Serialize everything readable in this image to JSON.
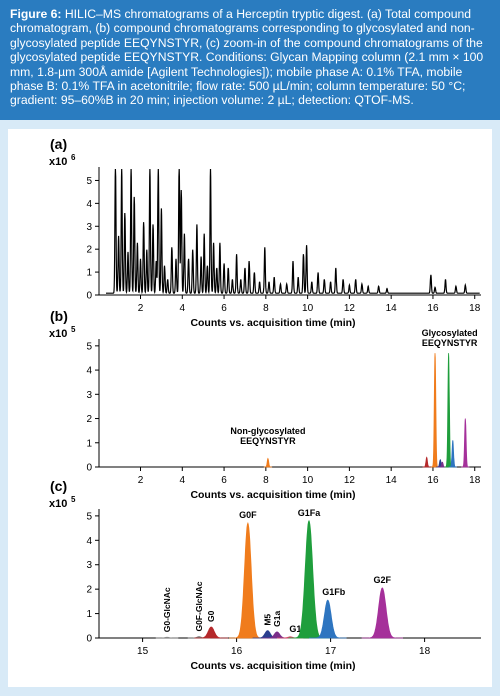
{
  "caption": {
    "label": "Figure 6:",
    "text": "HILIC–MS chromatograms of a Herceptin tryptic digest. (a) Total compound chromatogram, (b) compound chromatograms corresponding to glycosylated and non-glycosylated peptide EEQYNSTYR, (c) zoom-in of the compound chromatograms of the glycosylated peptide EEQYNSTYR. Conditions: Glycan Mapping column (2.1 mm × 100 mm, 1.8-µm 300Å amide [Agilent Technologies]); mobile phase A: 0.1% TFA, mobile phase B: 0.1% TFA in acetonitrile; flow rate: 500 µL/min; column temperature: 50 °C; gradient: 95–60%B in 20 min; injection volume: 2 µL; detection: QTOF-MS."
  },
  "colors": {
    "caption_bg": "#2a7cc0",
    "page_bg": "#d8eaf7",
    "trace": "#000000",
    "G0-GlcNAc": "#8a8a8a",
    "G0F-GlcNAc": "#7a7a7a",
    "G0": "#b5292b",
    "G0F": "#f07c1c",
    "M5": "#2a3f8f",
    "G1a": "#7a2f8a",
    "G1b": "#d84a6a",
    "G1Fa": "#1f9e3c",
    "G1Fb": "#2e75c0",
    "G2F": "#a5309a"
  },
  "chart_data": [
    {
      "panel_label": "(a)",
      "type": "line",
      "title": "",
      "xlabel": "Counts vs. acquisition time (min)",
      "ylabel": "",
      "y_multiplier": "x10",
      "y_multiplier_exp": "6",
      "xlim": [
        0.3,
        18.3
      ],
      "ylim": [
        0,
        5.5
      ],
      "xticks": [
        2,
        4,
        6,
        8,
        10,
        12,
        14,
        16,
        18
      ],
      "yticks": [
        0,
        1,
        2,
        3,
        4,
        5
      ],
      "series": [
        {
          "peaks": [
            [
              0.8,
              5.5
            ],
            [
              0.95,
              2.5
            ],
            [
              1.1,
              5.5
            ],
            [
              1.25,
              3.5
            ],
            [
              1.4,
              1.8
            ],
            [
              1.55,
              5.5
            ],
            [
              1.7,
              4.2
            ],
            [
              1.85,
              2.2
            ],
            [
              2.0,
              1.5
            ],
            [
              2.15,
              3.1
            ],
            [
              2.3,
              1.9
            ],
            [
              2.45,
              5.5
            ],
            [
              2.6,
              3.0
            ],
            [
              2.75,
              1.4
            ],
            [
              2.85,
              5.5
            ],
            [
              3.0,
              3.7
            ],
            [
              3.15,
              1.2
            ],
            [
              3.3,
              0.6
            ],
            [
              3.5,
              2.0
            ],
            [
              3.7,
              1.5
            ],
            [
              3.85,
              5.5
            ],
            [
              3.95,
              4.5
            ],
            [
              4.1,
              2.6
            ],
            [
              4.3,
              1.5
            ],
            [
              4.5,
              1.9
            ],
            [
              4.7,
              3.0
            ],
            [
              4.9,
              1.6
            ],
            [
              5.05,
              2.6
            ],
            [
              5.2,
              1.2
            ],
            [
              5.35,
              5.5
            ],
            [
              5.5,
              2.2
            ],
            [
              5.65,
              1.1
            ],
            [
              5.8,
              2.2
            ],
            [
              6.0,
              1.3
            ],
            [
              6.2,
              1.1
            ],
            [
              6.4,
              0.6
            ],
            [
              6.6,
              1.7
            ],
            [
              6.8,
              0.6
            ],
            [
              7.0,
              1.1
            ],
            [
              7.2,
              1.4
            ],
            [
              7.45,
              0.9
            ],
            [
              7.7,
              0.5
            ],
            [
              7.95,
              2.0
            ],
            [
              8.15,
              0.5
            ],
            [
              8.4,
              0.7
            ],
            [
              8.7,
              0.4
            ],
            [
              9.0,
              0.4
            ],
            [
              9.3,
              1.4
            ],
            [
              9.55,
              0.7
            ],
            [
              9.8,
              1.7
            ],
            [
              9.95,
              2.1
            ],
            [
              10.2,
              0.5
            ],
            [
              10.5,
              0.9
            ],
            [
              10.8,
              0.6
            ],
            [
              11.1,
              0.5
            ],
            [
              11.35,
              1.1
            ],
            [
              11.7,
              0.6
            ],
            [
              12.0,
              0.35
            ],
            [
              12.3,
              0.6
            ],
            [
              12.6,
              0.4
            ],
            [
              12.9,
              0.3
            ],
            [
              13.4,
              0.3
            ],
            [
              13.8,
              0.2
            ],
            [
              15.9,
              0.8
            ],
            [
              16.1,
              0.25
            ],
            [
              16.6,
              0.6
            ],
            [
              17.1,
              0.3
            ],
            [
              17.55,
              0.35
            ]
          ]
        }
      ]
    },
    {
      "panel_label": "(b)",
      "type": "line",
      "title": "",
      "xlabel": "Counts vs. acquisition time (min)",
      "ylabel": "",
      "y_multiplier": "x10",
      "y_multiplier_exp": "5",
      "xlim": [
        0.3,
        18.3
      ],
      "ylim": [
        0,
        5.2
      ],
      "xticks": [
        2,
        4,
        6,
        8,
        10,
        12,
        14,
        16,
        18
      ],
      "yticks": [
        0,
        1,
        2,
        3,
        4,
        5
      ],
      "annotations": [
        {
          "lines": [
            "Non-glycosylated",
            "EEQYNSTYR"
          ],
          "x": 8.1,
          "y": 0.95
        },
        {
          "lines": [
            "Glycosylated",
            "EEQYNSTYR"
          ],
          "x": 16.8,
          "y": 5.0
        }
      ],
      "series": [
        {
          "name": "Non-glycosylated",
          "color_key": "G0F",
          "peaks": [
            [
              8.1,
              0.35
            ]
          ]
        },
        {
          "name": "G0",
          "color_key": "G0",
          "peaks": [
            [
              15.7,
              0.4
            ]
          ]
        },
        {
          "name": "G0F",
          "color_key": "G0F",
          "peaks": [
            [
              16.1,
              4.7
            ]
          ]
        },
        {
          "name": "M5",
          "color_key": "M5",
          "peaks": [
            [
              16.35,
              0.3
            ]
          ]
        },
        {
          "name": "G1a",
          "color_key": "G1a",
          "peaks": [
            [
              16.45,
              0.2
            ]
          ]
        },
        {
          "name": "G1Fa",
          "color_key": "G1Fa",
          "peaks": [
            [
              16.75,
              4.7
            ]
          ]
        },
        {
          "name": "G1Fb",
          "color_key": "G1Fb",
          "peaks": [
            [
              16.95,
              1.1
            ]
          ]
        },
        {
          "name": "G2F",
          "color_key": "G2F",
          "peaks": [
            [
              17.55,
              2.0
            ]
          ]
        }
      ]
    },
    {
      "panel_label": "(c)",
      "type": "area",
      "title": "",
      "xlabel": "Counts vs. acquisition time (min)",
      "ylabel": "",
      "y_multiplier": "x10",
      "y_multiplier_exp": "5",
      "xlim": [
        14.6,
        18.6
      ],
      "ylim": [
        0,
        5.2
      ],
      "xticks": [
        15,
        16,
        17,
        18
      ],
      "yticks": [
        0,
        1,
        2,
        3,
        4,
        5
      ],
      "series": [
        {
          "name": "G0-GlcNAc",
          "color_key": "G0-GlcNAc",
          "center": 15.26,
          "height": 0.03,
          "width": 0.03,
          "label_rotated": true
        },
        {
          "name": "G0F-GlcNAc",
          "color_key": "G0F-GlcNAc",
          "center": 15.6,
          "height": 0.06,
          "width": 0.03,
          "label_rotated": true
        },
        {
          "name": "G0",
          "color_key": "G0",
          "center": 15.73,
          "height": 0.45,
          "width": 0.045,
          "label_rotated": true
        },
        {
          "name": "G0F",
          "color_key": "G0F",
          "center": 16.12,
          "height": 4.7,
          "width": 0.05,
          "label_rotated": false
        },
        {
          "name": "M5",
          "color_key": "M5",
          "center": 16.33,
          "height": 0.3,
          "width": 0.04,
          "label_rotated": true
        },
        {
          "name": "G1a",
          "color_key": "G1a",
          "center": 16.43,
          "height": 0.25,
          "width": 0.04,
          "label_rotated": true
        },
        {
          "name": "G1b",
          "color_key": "G1b",
          "center": 16.57,
          "height": 0.05,
          "width": 0.035,
          "label_rotated": false
        },
        {
          "name": "G1Fa",
          "color_key": "G1Fa",
          "center": 16.77,
          "height": 4.8,
          "width": 0.055,
          "label_rotated": false
        },
        {
          "name": "G1Fb",
          "color_key": "G1Fb",
          "center": 16.97,
          "height": 1.55,
          "width": 0.05,
          "label_rotated": false
        },
        {
          "name": "G2F",
          "color_key": "G2F",
          "center": 17.55,
          "height": 2.05,
          "width": 0.055,
          "label_rotated": false
        }
      ]
    }
  ]
}
